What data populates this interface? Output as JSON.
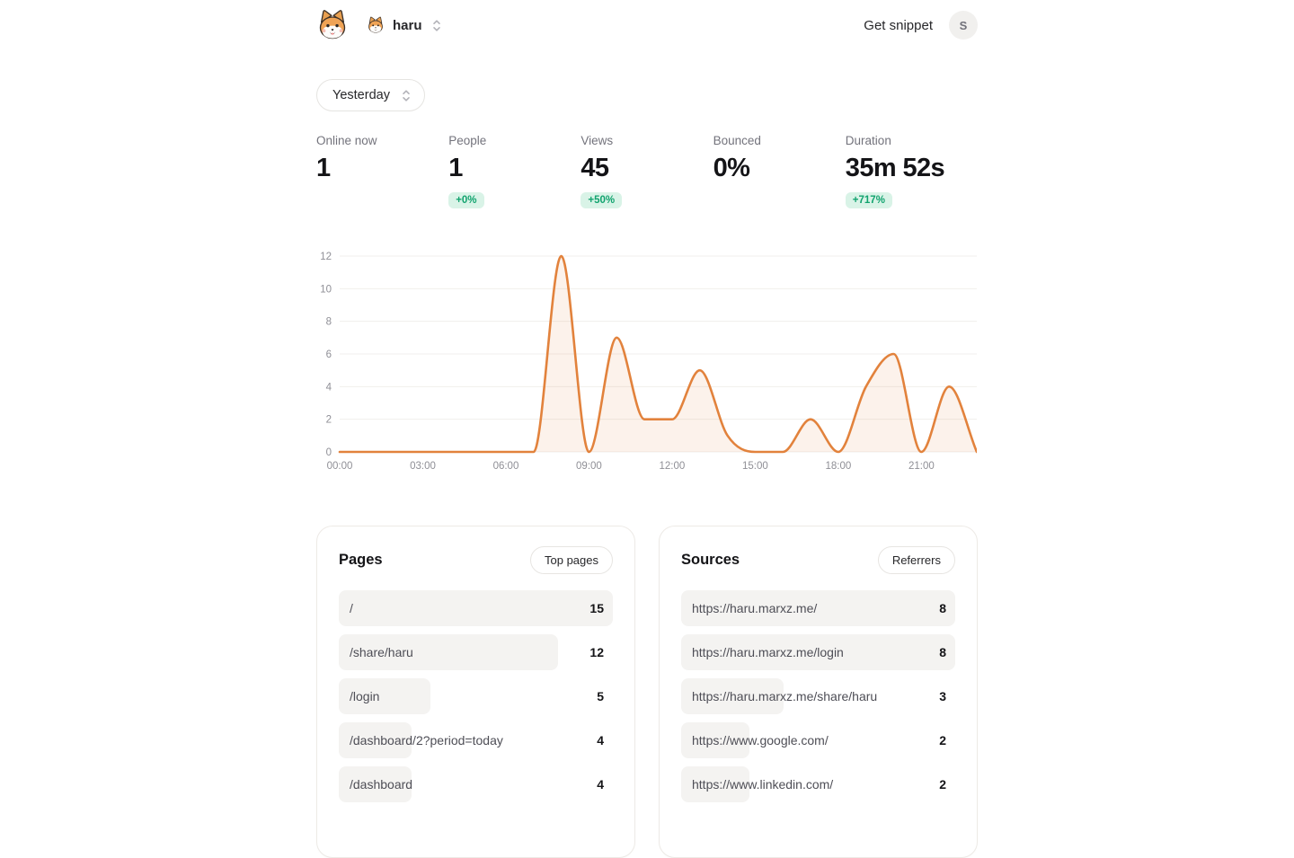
{
  "header": {
    "site_name": "haru",
    "get_snippet_label": "Get snippet",
    "user_initial": "S"
  },
  "period_selector": {
    "value": "Yesterday"
  },
  "stats": [
    {
      "label": "Online now",
      "value": "1",
      "badge": null
    },
    {
      "label": "People",
      "value": "1",
      "badge": "+0%"
    },
    {
      "label": "Views",
      "value": "45",
      "badge": "+50%"
    },
    {
      "label": "Bounced",
      "value": "0%",
      "badge": null
    },
    {
      "label": "Duration",
      "value": "35m 52s",
      "badge": "+717%"
    }
  ],
  "chart_data": {
    "type": "area",
    "x_hours": [
      0,
      1,
      2,
      3,
      4,
      5,
      6,
      7,
      8,
      9,
      10,
      11,
      12,
      13,
      14,
      15,
      16,
      17,
      18,
      19,
      20,
      21,
      22,
      23
    ],
    "values": [
      0,
      0,
      0,
      0,
      0,
      0,
      0,
      0,
      12,
      0,
      7,
      2,
      2,
      5,
      1,
      0,
      0,
      2,
      0,
      4,
      6,
      0,
      4,
      0
    ],
    "x_tick_labels": [
      "00:00",
      "03:00",
      "06:00",
      "09:00",
      "12:00",
      "15:00",
      "18:00",
      "21:00"
    ],
    "x_tick_hours": [
      0,
      3,
      6,
      9,
      12,
      15,
      18,
      21
    ],
    "yticks": [
      0,
      2,
      4,
      6,
      8,
      10,
      12
    ],
    "ylim": [
      0,
      12
    ],
    "grid": true,
    "legend": false,
    "line_color": "#e2823c",
    "fill_color": "rgba(228,130,60,0.10)"
  },
  "pages_card": {
    "title": "Pages",
    "action_label": "Top pages",
    "max_value": 15,
    "rows": [
      {
        "label": "/",
        "value": 15
      },
      {
        "label": "/share/haru",
        "value": 12
      },
      {
        "label": "/login",
        "value": 5
      },
      {
        "label": "/dashboard/2?period=today",
        "value": 4
      },
      {
        "label": "/dashboard",
        "value": 4
      }
    ]
  },
  "sources_card": {
    "title": "Sources",
    "action_label": "Referrers",
    "max_value": 8,
    "rows": [
      {
        "label": "https://haru.marxz.me/",
        "value": 8
      },
      {
        "label": "https://haru.marxz.me/login",
        "value": 8
      },
      {
        "label": "https://haru.marxz.me/share/haru",
        "value": 3
      },
      {
        "label": "https://www.google.com/",
        "value": 2
      },
      {
        "label": "https://www.linkedin.com/",
        "value": 2
      }
    ]
  },
  "colors": {
    "accent_orange": "#e2823c",
    "badge_bg": "#d9f3e7",
    "badge_text": "#11a36e",
    "bar_bg": "#f4f3f1",
    "grid_line": "#f1efec"
  },
  "icons": {
    "logo": "shiba-dog-face",
    "site_avatar": "shiba-dog-face",
    "selector_caret": "chevron-up-down"
  }
}
